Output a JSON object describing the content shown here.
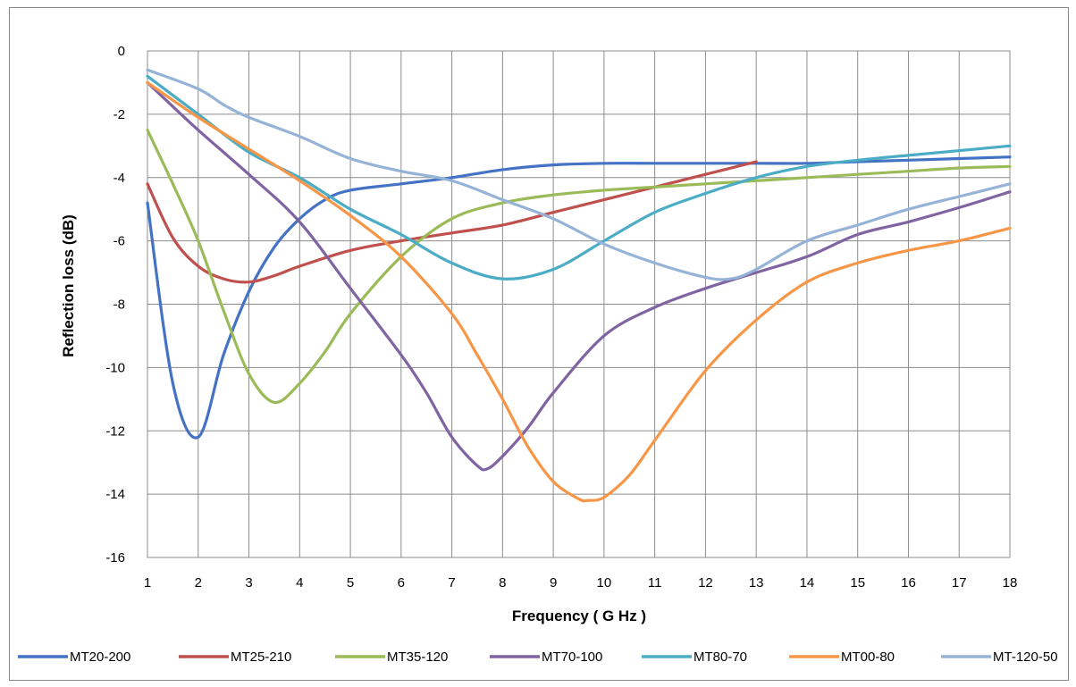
{
  "chart_data": {
    "type": "line",
    "title": "",
    "xlabel": "Frequency ( G Hz )",
    "ylabel": "Reflection loss (dB)",
    "xlim": [
      1,
      18
    ],
    "ylim": [
      -16,
      0
    ],
    "x_ticks": [
      1,
      2,
      3,
      4,
      5,
      6,
      7,
      8,
      9,
      10,
      11,
      12,
      13,
      14,
      15,
      16,
      17,
      18
    ],
    "y_ticks": [
      0,
      -2,
      -4,
      -6,
      -8,
      -10,
      -12,
      -14,
      -16
    ],
    "grid": true,
    "legend_position": "bottom",
    "series": [
      {
        "name": "MT20-200",
        "color": "#4472C4",
        "points": [
          [
            1,
            -4.8
          ],
          [
            1.5,
            -10.5
          ],
          [
            2,
            -12.2
          ],
          [
            2.5,
            -9.6
          ],
          [
            3,
            -7.6
          ],
          [
            3.5,
            -6.2
          ],
          [
            4,
            -5.3
          ],
          [
            4.5,
            -4.7
          ],
          [
            5,
            -4.4
          ],
          [
            6,
            -4.2
          ],
          [
            7,
            -4.0
          ],
          [
            8,
            -3.75
          ],
          [
            9,
            -3.6
          ],
          [
            10,
            -3.55
          ],
          [
            11,
            -3.55
          ],
          [
            12,
            -3.55
          ],
          [
            13,
            -3.55
          ],
          [
            14,
            -3.55
          ],
          [
            15,
            -3.5
          ],
          [
            16,
            -3.45
          ],
          [
            17,
            -3.4
          ],
          [
            18,
            -3.35
          ]
        ]
      },
      {
        "name": "MT25-210",
        "color": "#C0504D",
        "points": [
          [
            1,
            -4.2
          ],
          [
            1.5,
            -5.9
          ],
          [
            2,
            -6.8
          ],
          [
            2.5,
            -7.2
          ],
          [
            3,
            -7.3
          ],
          [
            3.5,
            -7.1
          ],
          [
            4,
            -6.8
          ],
          [
            5,
            -6.3
          ],
          [
            6,
            -6.0
          ],
          [
            7,
            -5.75
          ],
          [
            8,
            -5.5
          ],
          [
            9,
            -5.1
          ],
          [
            10,
            -4.7
          ],
          [
            11,
            -4.3
          ],
          [
            12,
            -3.9
          ],
          [
            13,
            -3.5
          ]
        ]
      },
      {
        "name": "MT35-120",
        "color": "#9BBB59",
        "points": [
          [
            1,
            -2.5
          ],
          [
            1.5,
            -4.2
          ],
          [
            2,
            -6.0
          ],
          [
            2.5,
            -8.2
          ],
          [
            3,
            -10.2
          ],
          [
            3.5,
            -11.1
          ],
          [
            4,
            -10.5
          ],
          [
            4.5,
            -9.5
          ],
          [
            5,
            -8.3
          ],
          [
            6,
            -6.5
          ],
          [
            7,
            -5.3
          ],
          [
            8,
            -4.8
          ],
          [
            9,
            -4.55
          ],
          [
            10,
            -4.4
          ],
          [
            11,
            -4.3
          ],
          [
            12,
            -4.2
          ],
          [
            13,
            -4.1
          ],
          [
            14,
            -4.0
          ],
          [
            15,
            -3.9
          ],
          [
            16,
            -3.8
          ],
          [
            17,
            -3.7
          ],
          [
            18,
            -3.65
          ]
        ]
      },
      {
        "name": "MT70-100",
        "color": "#8064A2",
        "points": [
          [
            1,
            -1.0
          ],
          [
            2,
            -2.5
          ],
          [
            3,
            -3.9
          ],
          [
            4,
            -5.4
          ],
          [
            5,
            -7.5
          ],
          [
            6,
            -9.6
          ],
          [
            6.5,
            -10.8
          ],
          [
            7,
            -12.2
          ],
          [
            7.5,
            -13.1
          ],
          [
            7.7,
            -13.2
          ],
          [
            8,
            -12.8
          ],
          [
            8.5,
            -11.9
          ],
          [
            9,
            -10.8
          ],
          [
            10,
            -9.0
          ],
          [
            11,
            -8.1
          ],
          [
            12,
            -7.5
          ],
          [
            13,
            -7.0
          ],
          [
            14,
            -6.5
          ],
          [
            15,
            -5.8
          ],
          [
            16,
            -5.4
          ],
          [
            17,
            -4.95
          ],
          [
            18,
            -4.45
          ]
        ]
      },
      {
        "name": "MT80-70",
        "color": "#4BACC6",
        "points": [
          [
            1,
            -0.8
          ],
          [
            2,
            -2.0
          ],
          [
            3,
            -3.2
          ],
          [
            4,
            -4.0
          ],
          [
            5,
            -5.0
          ],
          [
            6,
            -5.8
          ],
          [
            7,
            -6.7
          ],
          [
            8,
            -7.2
          ],
          [
            9,
            -6.9
          ],
          [
            10,
            -6.0
          ],
          [
            11,
            -5.1
          ],
          [
            12,
            -4.5
          ],
          [
            13,
            -4.0
          ],
          [
            14,
            -3.65
          ],
          [
            15,
            -3.45
          ],
          [
            16,
            -3.3
          ],
          [
            17,
            -3.15
          ],
          [
            18,
            -3.0
          ]
        ]
      },
      {
        "name": "MT00-80",
        "color": "#F79646",
        "points": [
          [
            1,
            -1.0
          ],
          [
            2,
            -2.1
          ],
          [
            3,
            -3.1
          ],
          [
            4,
            -4.1
          ],
          [
            5,
            -5.2
          ],
          [
            6,
            -6.5
          ],
          [
            7,
            -8.3
          ],
          [
            7.5,
            -9.6
          ],
          [
            8,
            -11.0
          ],
          [
            8.5,
            -12.5
          ],
          [
            9,
            -13.6
          ],
          [
            9.5,
            -14.15
          ],
          [
            9.7,
            -14.2
          ],
          [
            10,
            -14.1
          ],
          [
            10.5,
            -13.4
          ],
          [
            11,
            -12.3
          ],
          [
            12,
            -10.1
          ],
          [
            13,
            -8.5
          ],
          [
            14,
            -7.3
          ],
          [
            15,
            -6.7
          ],
          [
            16,
            -6.3
          ],
          [
            17,
            -6.0
          ],
          [
            18,
            -5.6
          ]
        ]
      },
      {
        "name": "MT-120-50",
        "color": "#95B3D7",
        "points": [
          [
            1,
            -0.6
          ],
          [
            2,
            -1.2
          ],
          [
            2.5,
            -1.7
          ],
          [
            3,
            -2.1
          ],
          [
            4,
            -2.7
          ],
          [
            5,
            -3.4
          ],
          [
            6,
            -3.8
          ],
          [
            7,
            -4.1
          ],
          [
            8,
            -4.7
          ],
          [
            9,
            -5.3
          ],
          [
            10,
            -6.1
          ],
          [
            11,
            -6.7
          ],
          [
            12,
            -7.15
          ],
          [
            12.5,
            -7.2
          ],
          [
            13,
            -6.9
          ],
          [
            14,
            -6.0
          ],
          [
            15,
            -5.5
          ],
          [
            16,
            -5.0
          ],
          [
            17,
            -4.6
          ],
          [
            18,
            -4.2
          ]
        ]
      }
    ]
  }
}
